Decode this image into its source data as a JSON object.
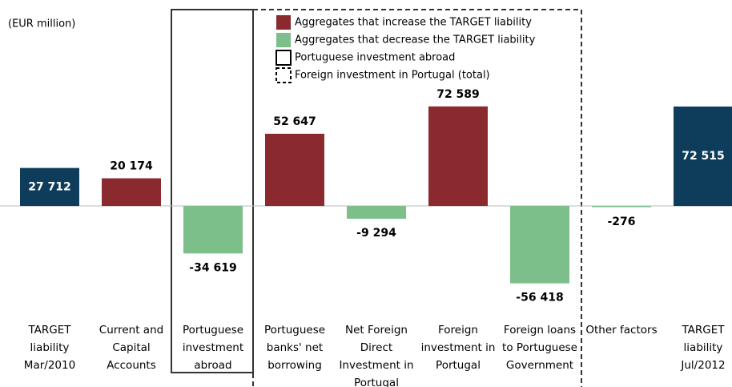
{
  "chart_data": {
    "type": "bar",
    "unit_label": "(EUR million)",
    "categories": [
      "TARGET liability Mar/2010",
      "Current and Capital Accounts",
      "Portuguese investment abroad",
      "Portuguese banks' net borrowing",
      "Net Foreign Direct Investment in Portugal",
      "Foreign investment in Portugal",
      "Foreign loans to Portuguese Government",
      "Other factors",
      "TARGET liability Jul/2012"
    ],
    "values": [
      27712,
      20174,
      -34619,
      52647,
      -9294,
      72589,
      -56418,
      -276,
      72515
    ],
    "value_labels": [
      "27 712",
      "20 174",
      "-34 619",
      "52 647",
      "-9 294",
      "72 589",
      "-56 418",
      "-276",
      "72 515"
    ],
    "colors": [
      "#0e3d5c",
      "#8b2a2e",
      "#7dbf8b",
      "#8b2a2e",
      "#7dbf8b",
      "#8b2a2e",
      "#7dbf8b",
      "#7dbf8b",
      "#0e3d5c"
    ],
    "legend": [
      {
        "label": "Aggregates that increase the TARGET liability",
        "color": "#8b2a2e"
      },
      {
        "label": "Aggregates that decrease the TARGET liability",
        "color": "#7dbf8b"
      },
      {
        "label": "Portuguese investment abroad",
        "style": "solid"
      },
      {
        "label": "Foreign investment in Portugal (total)",
        "style": "dashed"
      }
    ],
    "ylim": [
      -80000,
      90000
    ]
  }
}
